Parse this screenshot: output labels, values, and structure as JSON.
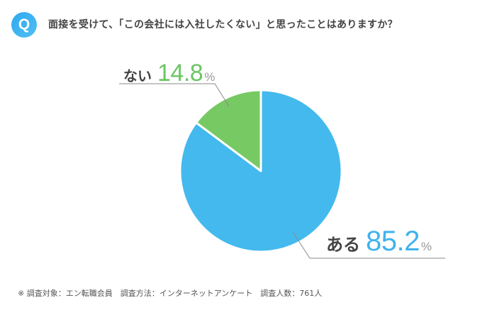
{
  "header": {
    "badge": "Q",
    "question": "面接を受けて、「この会社には入社したくない」と思ったことはありますか？"
  },
  "chart_data": {
    "type": "pie",
    "title": "面接を受けて、「この会社には入社したくない」と思ったことはありますか？",
    "categories": [
      "ある",
      "ない"
    ],
    "values": [
      85.2,
      14.8
    ],
    "unit": "%",
    "colors": {
      "ある": "#43b9ee",
      "ない": "#77c964"
    },
    "start_angle": "12 o'clock, clockwise: ある first",
    "legend": "none (direct labels with leader lines)"
  },
  "labels": {
    "nai": {
      "category": "ない",
      "value": "14.8",
      "unit": "%"
    },
    "aru": {
      "category": "ある",
      "value": "85.2",
      "unit": "%"
    }
  },
  "colors": {
    "aru": "#43b9ee",
    "nai": "#77c964",
    "leader": "#8a8a8a",
    "separator": "#ffffff"
  },
  "footnote": "※ 調査対象：エン転職会員　調査方法：インターネットアンケート　調査人数：761人"
}
